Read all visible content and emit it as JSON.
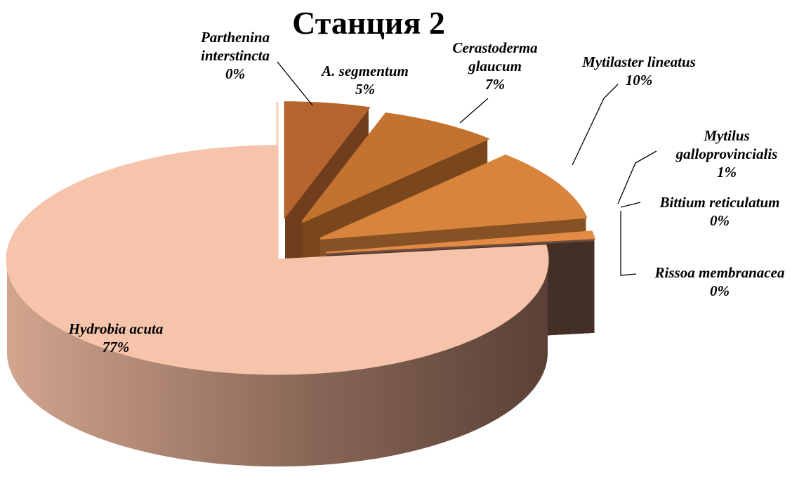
{
  "chart_data": {
    "type": "pie3d",
    "title": "Станция 2",
    "categories": [
      "Parthenina interstincta",
      "A. segmentum",
      "Cerastoderma glaucum",
      "Mytilaster lineatus",
      "Mytilus galloprovincialis",
      "Bittium reticulatum",
      "Rissoa membranacea",
      "Hydrobia acuta"
    ],
    "values": [
      0,
      5,
      7,
      10,
      1,
      0,
      0,
      77
    ],
    "value_labels": [
      "0%",
      "5%",
      "7%",
      "10%",
      "1%",
      "0%",
      "0%",
      "77%"
    ],
    "colors": [
      "#f7cdb9",
      "#b5642e",
      "#c4722f",
      "#d8843c",
      "#e38b45",
      "#7d5443",
      "#6e4c3f",
      "#f6c4aa"
    ]
  }
}
